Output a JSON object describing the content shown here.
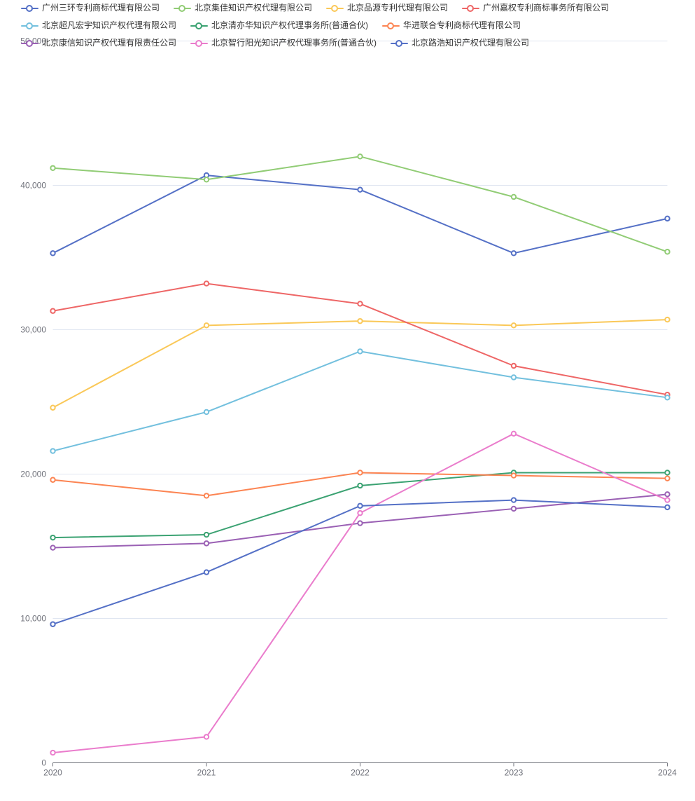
{
  "chart_data": {
    "type": "line",
    "title": "",
    "xlabel": "",
    "ylabel": "",
    "x": [
      "2020",
      "2021",
      "2022",
      "2023",
      "2024"
    ],
    "ylim": [
      0,
      50000
    ],
    "y_ticks": [
      0,
      10000,
      20000,
      30000,
      40000,
      50000
    ],
    "y_tick_labels": [
      "0",
      "10,000",
      "20,000",
      "30,000",
      "40,000",
      "50,000"
    ],
    "grid": true,
    "legend_position": "top",
    "series": [
      {
        "name": "广州三环专利商标代理有限公司",
        "color": "#5470c6",
        "values": [
          35300,
          40700,
          39700,
          35300,
          37700
        ]
      },
      {
        "name": "北京集佳知识产权代理有限公司",
        "color": "#91cc75",
        "values": [
          41200,
          40400,
          42000,
          39200,
          35400
        ]
      },
      {
        "name": "北京品源专利代理有限公司",
        "color": "#fac858",
        "values": [
          24600,
          30300,
          30600,
          30300,
          30700
        ]
      },
      {
        "name": "广州嘉权专利商标事务所有限公司",
        "color": "#ee6666",
        "values": [
          31300,
          33200,
          31800,
          27500,
          25500
        ]
      },
      {
        "name": "北京超凡宏宇知识产权代理有限公司",
        "color": "#73c0de",
        "values": [
          21600,
          24300,
          28500,
          26700,
          25300
        ]
      },
      {
        "name": "北京清亦华知识产权代理事务所(普通合伙)",
        "color": "#3ba272",
        "values": [
          15600,
          15800,
          19200,
          20100,
          20100
        ]
      },
      {
        "name": "华进联合专利商标代理有限公司",
        "color": "#fc8452",
        "values": [
          19600,
          18500,
          20100,
          19900,
          19700
        ]
      },
      {
        "name": "北京康信知识产权代理有限责任公司",
        "color": "#9a60b4",
        "values": [
          14900,
          15200,
          16600,
          17600,
          18600
        ]
      },
      {
        "name": "北京智行阳光知识产权代理事务所(普通合伙)",
        "color": "#ea7ccc",
        "values": [
          700,
          1800,
          17300,
          22800,
          18200
        ]
      },
      {
        "name": "北京路浩知识产权代理有限公司",
        "color": "#5470c6",
        "values": [
          9600,
          13200,
          17800,
          18200,
          17700
        ]
      }
    ]
  },
  "style_colors": {
    "gridline": "#E0E6F1",
    "axis_line": "#6E7079",
    "axis_label": "#6E7079",
    "legend_text": "#333333",
    "background": "#ffffff",
    "marker_fill": "#ffffff"
  }
}
